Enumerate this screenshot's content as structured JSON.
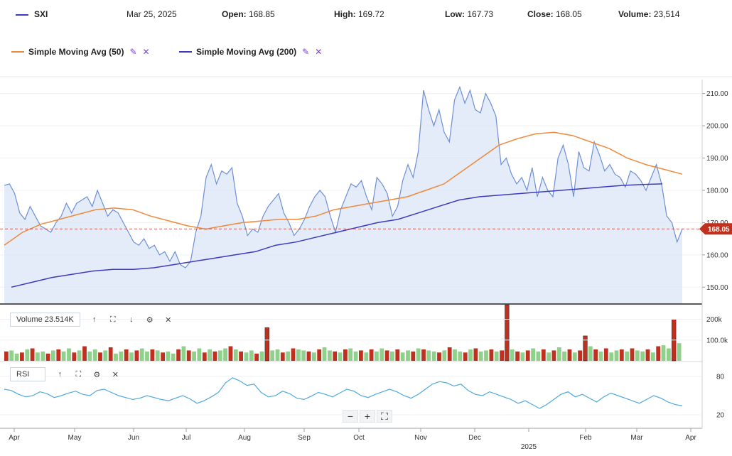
{
  "header": {
    "symbol": "SXI",
    "date": "Mar 25, 2025",
    "open_label": "Open:",
    "open": "168.85",
    "high_label": "High:",
    "high": "169.72",
    "low_label": "Low:",
    "low": "167.73",
    "close_label": "Close:",
    "close": "168.05",
    "volume_label": "Volume:",
    "volume": "23,514"
  },
  "legend": [
    {
      "label": "Simple Moving Avg (50)",
      "color": "#f0883a"
    },
    {
      "label": "Simple Moving Avg (200)",
      "color": "#3b3bbf"
    }
  ],
  "icons": {
    "edit": "pencil-icon",
    "remove": "close-icon"
  },
  "panels": {
    "volume_label": "Volume 23.514K",
    "rsi_label": "RSI"
  },
  "toolbar_glyphs": {
    "up": "↑",
    "down": "↓",
    "expand": "⛶",
    "gear": "⚙",
    "close": "✕",
    "minus": "−",
    "plus": "+",
    "fit": "⛶"
  },
  "current_price_label": "168.05",
  "chart_data": {
    "type": "area",
    "price_axis": {
      "ticks": [
        "210.00",
        "200.00",
        "190.00",
        "180.00",
        "170.00",
        "160.00",
        "150.00"
      ],
      "range": [
        145,
        213
      ]
    },
    "volume_axis": {
      "ticks": [
        "200k",
        "100.0k"
      ],
      "range": [
        0,
        260000
      ]
    },
    "rsi_axis": {
      "ticks": [
        "80",
        "20"
      ],
      "range": [
        0,
        100
      ]
    },
    "x_labels": [
      "Apr",
      "May",
      "Jun",
      "Jul",
      "Aug",
      "Sep",
      "Oct",
      "Nov",
      "Dec",
      "2025",
      "Feb",
      "Mar",
      "Apr"
    ],
    "x_sub_label": "2025",
    "colors": {
      "price_line": "#6d8fd6",
      "price_fill": "#dbe6f7",
      "sma50": "#f0883a",
      "sma200": "#3b3bbf",
      "vol_up": "#8fd18a",
      "vol_down": "#c0301e",
      "rsi": "#4fa9de",
      "current": "#c0301e"
    },
    "price": [
      181.5,
      182,
      179,
      173,
      171,
      175,
      172,
      169,
      168,
      167,
      170,
      172,
      176,
      173,
      176,
      177,
      178,
      175,
      180,
      176,
      172,
      174,
      173,
      170,
      167,
      164,
      163,
      165,
      162,
      163,
      160,
      161,
      158,
      161,
      157,
      156,
      158,
      167,
      172,
      184,
      188,
      182,
      186,
      185,
      187,
      176,
      172,
      166,
      168,
      167,
      172,
      175,
      177,
      179,
      173,
      170,
      166,
      168,
      171,
      175,
      178,
      180,
      178,
      172,
      167,
      174,
      178,
      182,
      181,
      183,
      178,
      174,
      184,
      182,
      179,
      172,
      175,
      183,
      188,
      184,
      192,
      211,
      205,
      200,
      205,
      198,
      195,
      208,
      212,
      207,
      211,
      205,
      204,
      210,
      207,
      203,
      188,
      190,
      185,
      182,
      184,
      180,
      187,
      178,
      184,
      180,
      178,
      190,
      194,
      188,
      178,
      192,
      187,
      186,
      195,
      191,
      186,
      188,
      185,
      184,
      181,
      186,
      185,
      183,
      180,
      184,
      188,
      182,
      172,
      170,
      164,
      168
    ],
    "sma50": [
      163,
      167,
      169.5,
      171,
      172.5,
      174,
      174.5,
      174,
      172,
      170.5,
      169,
      168,
      169,
      170,
      170.5,
      171,
      171,
      172,
      174,
      175,
      176,
      177,
      178,
      180,
      182,
      186,
      190,
      194,
      196,
      197.5,
      198,
      197,
      195,
      193,
      190,
      188,
      186.5,
      185
    ],
    "sma200": [
      150,
      151.5,
      153,
      154,
      155,
      155.5,
      155.5,
      156,
      157,
      158,
      159,
      160,
      161,
      163,
      164,
      165.5,
      167,
      168.5,
      170,
      171,
      173,
      175,
      177,
      178,
      178.5,
      179,
      179.5,
      180,
      180.5,
      181,
      181.5,
      181.8,
      182
    ],
    "volume": [
      45,
      50,
      35,
      40,
      55,
      60,
      40,
      45,
      35,
      50,
      55,
      45,
      60,
      40,
      50,
      70,
      45,
      55,
      40,
      50,
      65,
      35,
      45,
      55,
      40,
      50,
      60,
      45,
      55,
      50,
      40,
      45,
      35,
      55,
      70,
      50,
      45,
      60,
      40,
      55,
      45,
      50,
      60,
      70,
      55,
      45,
      40,
      50,
      35,
      45,
      160,
      50,
      55,
      40,
      45,
      60,
      55,
      50,
      45,
      40,
      55,
      65,
      50,
      45,
      40,
      55,
      60,
      45,
      50,
      40,
      55,
      45,
      60,
      50,
      45,
      55,
      40,
      50,
      45,
      60,
      55,
      50,
      45,
      40,
      50,
      65,
      55,
      45,
      40,
      55,
      60,
      45,
      50,
      55,
      45,
      50,
      270,
      55,
      45,
      40,
      50,
      60,
      45,
      55,
      40,
      50,
      65,
      45,
      55,
      40,
      50,
      120,
      70,
      55,
      45,
      60,
      40,
      50,
      55,
      45,
      60,
      50,
      45,
      55,
      40,
      70,
      75,
      60,
      200,
      85
    ],
    "rsi": [
      60,
      58,
      52,
      48,
      50,
      56,
      53,
      47,
      50,
      54,
      57,
      52,
      50,
      58,
      60,
      55,
      50,
      47,
      44,
      46,
      50,
      47,
      44,
      42,
      46,
      50,
      45,
      38,
      42,
      48,
      55,
      70,
      78,
      73,
      66,
      68,
      55,
      48,
      50,
      57,
      53,
      46,
      44,
      49,
      55,
      52,
      48,
      54,
      60,
      57,
      50,
      47,
      52,
      56,
      60,
      56,
      50,
      46,
      52,
      60,
      68,
      72,
      70,
      65,
      68,
      58,
      52,
      50,
      56,
      52,
      48,
      44,
      38,
      42,
      36,
      30,
      36,
      44,
      52,
      56,
      48,
      52,
      46,
      40,
      48,
      54,
      50,
      46,
      42,
      38,
      44,
      50,
      46,
      40,
      36,
      34
    ]
  }
}
